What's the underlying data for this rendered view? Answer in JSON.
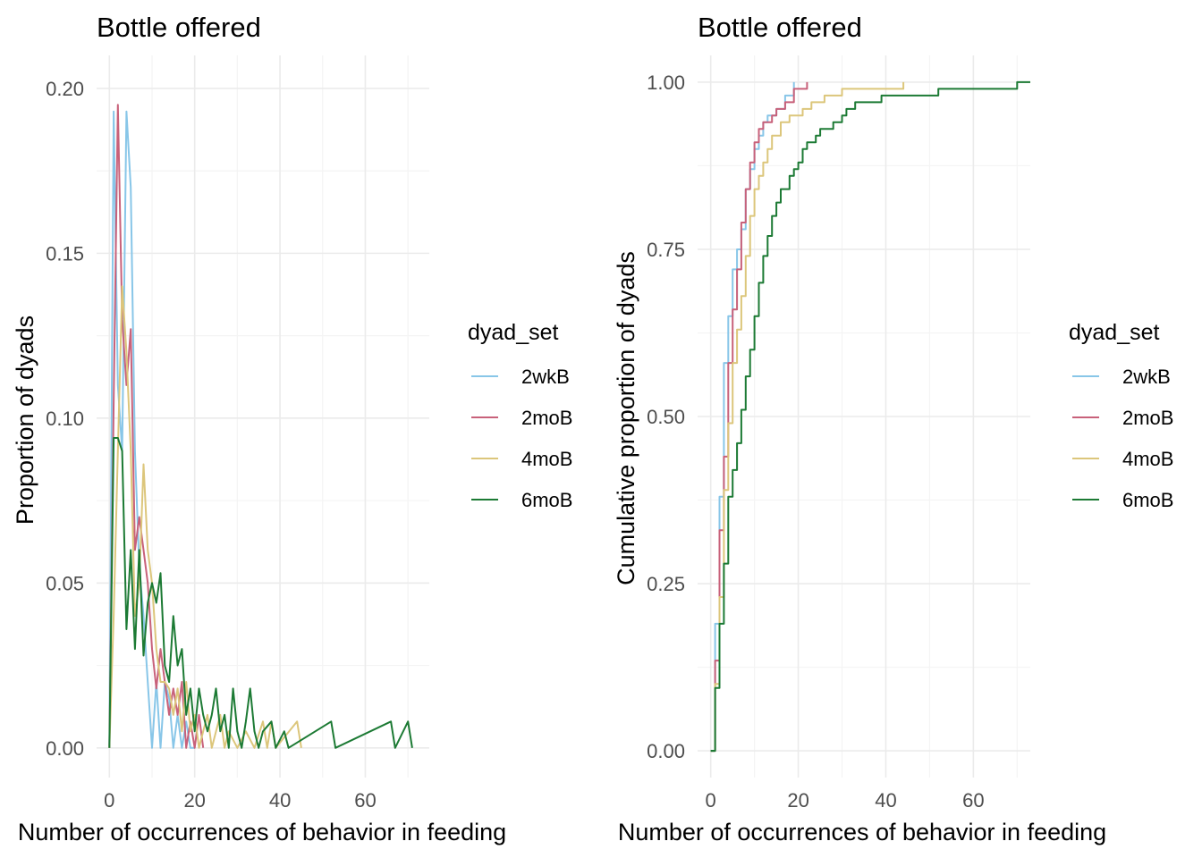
{
  "colors": {
    "2wkB": "#88c6e8",
    "2moB": "#c8617a",
    "4moB": "#dcc67b",
    "6moB": "#1c7a34",
    "grid_major": "#ebebeb",
    "grid_minor": "#f4f4f4",
    "axis_text": "#4d4d4d",
    "title_text": "#000000"
  },
  "chart_data": [
    {
      "type": "line",
      "title": "Bottle offered",
      "xlabel": "Number of occurrences of behavior in feeding",
      "ylabel": "Proportion of dyads",
      "xlim": [
        -3,
        75
      ],
      "ylim": [
        -0.009,
        0.21
      ],
      "x_ticks": [
        0,
        20,
        40,
        60
      ],
      "y_ticks": [
        0.0,
        0.05,
        0.1,
        0.15,
        0.2
      ],
      "x_tick_labels": [
        "0",
        "20",
        "40",
        "60"
      ],
      "y_tick_labels": [
        "0.00",
        "0.05",
        "0.10",
        "0.15",
        "0.20"
      ],
      "grid": true,
      "legend_title": "dyad_set",
      "legend_position": "right",
      "series": [
        {
          "name": "2wkB",
          "points": [
            [
              0,
              0
            ],
            [
              1,
              0.193
            ],
            [
              2,
              0.11
            ],
            [
              3,
              0.09
            ],
            [
              4,
              0.193
            ],
            [
              5,
              0.17
            ],
            [
              6,
              0.09
            ],
            [
              7,
              0.055
            ],
            [
              8,
              0.04
            ],
            [
              9,
              0.02
            ],
            [
              10,
              0
            ],
            [
              11,
              0.02
            ],
            [
              12,
              0
            ],
            [
              13,
              0.02
            ],
            [
              14,
              0.015
            ],
            [
              15,
              0
            ],
            [
              16,
              0.01
            ],
            [
              17,
              0
            ],
            [
              18,
              0.008
            ],
            [
              19,
              0
            ],
            [
              20,
              0
            ]
          ]
        },
        {
          "name": "2moB",
          "points": [
            [
              0,
              0
            ],
            [
              1,
              0.105
            ],
            [
              2,
              0.195
            ],
            [
              3,
              0.13
            ],
            [
              4,
              0.11
            ],
            [
              5,
              0.127
            ],
            [
              6,
              0.06
            ],
            [
              7,
              0.07
            ],
            [
              8,
              0.06
            ],
            [
              9,
              0.05
            ],
            [
              10,
              0.03
            ],
            [
              11,
              0.018
            ],
            [
              12,
              0.03
            ],
            [
              13,
              0.02
            ],
            [
              14,
              0.01
            ],
            [
              15,
              0.018
            ],
            [
              16,
              0.01
            ],
            [
              17,
              0.02
            ],
            [
              18,
              0
            ],
            [
              19,
              0.008
            ],
            [
              20,
              0
            ],
            [
              21,
              0.01
            ],
            [
              22,
              0
            ]
          ]
        },
        {
          "name": "4moB",
          "points": [
            [
              0,
              0
            ],
            [
              1,
              0.04
            ],
            [
              2,
              0.09
            ],
            [
              3,
              0.14
            ],
            [
              4,
              0.12
            ],
            [
              5,
              0.09
            ],
            [
              6,
              0.04
            ],
            [
              7,
              0.05
            ],
            [
              8,
              0.086
            ],
            [
              9,
              0.06
            ],
            [
              10,
              0.05
            ],
            [
              11,
              0.03
            ],
            [
              12,
              0.02
            ],
            [
              13,
              0.02
            ],
            [
              14,
              0.018
            ],
            [
              15,
              0.01
            ],
            [
              16,
              0.018
            ],
            [
              17,
              0.005
            ],
            [
              18,
              0.02
            ],
            [
              19,
              0.005
            ],
            [
              20,
              0.01
            ],
            [
              21,
              0
            ],
            [
              22,
              0.005
            ],
            [
              23,
              0.01
            ],
            [
              24,
              0
            ],
            [
              26,
              0.01
            ],
            [
              27,
              0
            ],
            [
              28,
              0.005
            ],
            [
              30,
              0
            ],
            [
              32,
              0.005
            ],
            [
              34,
              0
            ],
            [
              36,
              0.008
            ],
            [
              37,
              0
            ],
            [
              38,
              0.008
            ],
            [
              39,
              0
            ],
            [
              44,
              0.008
            ],
            [
              45,
              0
            ]
          ]
        },
        {
          "name": "6moB",
          "points": [
            [
              0,
              0
            ],
            [
              1,
              0.094
            ],
            [
              2,
              0.094
            ],
            [
              3,
              0.09
            ],
            [
              4,
              0.036
            ],
            [
              5,
              0.06
            ],
            [
              6,
              0.03
            ],
            [
              7,
              0.06
            ],
            [
              8,
              0.028
            ],
            [
              9,
              0.044
            ],
            [
              10,
              0.05
            ],
            [
              11,
              0.044
            ],
            [
              12,
              0.053
            ],
            [
              13,
              0.025
            ],
            [
              14,
              0.02
            ],
            [
              15,
              0.04
            ],
            [
              16,
              0.025
            ],
            [
              17,
              0.03
            ],
            [
              18,
              0.01
            ],
            [
              19,
              0.018
            ],
            [
              20,
              0.005
            ],
            [
              21,
              0.018
            ],
            [
              22,
              0.01
            ],
            [
              23,
              0.005
            ],
            [
              24,
              0.01
            ],
            [
              25,
              0.018
            ],
            [
              26,
              0.005
            ],
            [
              27,
              0.01
            ],
            [
              28,
              0
            ],
            [
              29,
              0.018
            ],
            [
              30,
              0.005
            ],
            [
              31,
              0
            ],
            [
              32,
              0.008
            ],
            [
              33,
              0.018
            ],
            [
              34,
              0.005
            ],
            [
              35,
              0
            ],
            [
              36,
              0.005
            ],
            [
              38,
              0.008
            ],
            [
              39,
              0
            ],
            [
              41,
              0.005
            ],
            [
              42,
              0
            ],
            [
              52,
              0.008
            ],
            [
              53,
              0
            ],
            [
              66,
              0.008
            ],
            [
              67,
              0
            ],
            [
              70,
              0.008
            ],
            [
              71,
              0
            ]
          ]
        }
      ]
    },
    {
      "type": "line",
      "title": "Bottle offered",
      "xlabel": "Number of occurrences of behavior in feeding",
      "ylabel": "Cumulative proportion of dyads",
      "xlim": [
        -3,
        73
      ],
      "ylim": [
        -0.04,
        1.04
      ],
      "x_ticks": [
        0,
        20,
        40,
        60
      ],
      "y_ticks": [
        0.0,
        0.25,
        0.5,
        0.75,
        1.0
      ],
      "x_tick_labels": [
        "0",
        "20",
        "40",
        "60"
      ],
      "y_tick_labels": [
        "0.00",
        "0.25",
        "0.50",
        "0.75",
        "1.00"
      ],
      "grid": true,
      "legend_title": "dyad_set",
      "legend_position": "right",
      "step": true,
      "series": [
        {
          "name": "2wkB",
          "points": [
            [
              0,
              0
            ],
            [
              1,
              0.19
            ],
            [
              2,
              0.38
            ],
            [
              3,
              0.58
            ],
            [
              4,
              0.65
            ],
            [
              5,
              0.72
            ],
            [
              6,
              0.75
            ],
            [
              7,
              0.78
            ],
            [
              8,
              0.84
            ],
            [
              9,
              0.87
            ],
            [
              10,
              0.9
            ],
            [
              11,
              0.92
            ],
            [
              12,
              0.94
            ],
            [
              13,
              0.95
            ],
            [
              15,
              0.96
            ],
            [
              17,
              0.98
            ],
            [
              19,
              1.0
            ]
          ]
        },
        {
          "name": "2moB",
          "points": [
            [
              0,
              0
            ],
            [
              1,
              0.135
            ],
            [
              2,
              0.33
            ],
            [
              3,
              0.44
            ],
            [
              4,
              0.58
            ],
            [
              5,
              0.66
            ],
            [
              6,
              0.72
            ],
            [
              7,
              0.79
            ],
            [
              8,
              0.84
            ],
            [
              9,
              0.88
            ],
            [
              10,
              0.91
            ],
            [
              11,
              0.93
            ],
            [
              12,
              0.94
            ],
            [
              14,
              0.95
            ],
            [
              15,
              0.96
            ],
            [
              17,
              0.97
            ],
            [
              19,
              0.99
            ],
            [
              22,
              1.0
            ]
          ]
        },
        {
          "name": "4moB",
          "points": [
            [
              0,
              0
            ],
            [
              1,
              0.1
            ],
            [
              2,
              0.23
            ],
            [
              3,
              0.39
            ],
            [
              4,
              0.49
            ],
            [
              5,
              0.58
            ],
            [
              6,
              0.63
            ],
            [
              7,
              0.68
            ],
            [
              8,
              0.74
            ],
            [
              9,
              0.8
            ],
            [
              10,
              0.84
            ],
            [
              11,
              0.86
            ],
            [
              12,
              0.88
            ],
            [
              13,
              0.9
            ],
            [
              14,
              0.92
            ],
            [
              16,
              0.94
            ],
            [
              18,
              0.95
            ],
            [
              21,
              0.96
            ],
            [
              23,
              0.97
            ],
            [
              26,
              0.98
            ],
            [
              30,
              0.99
            ],
            [
              44,
              1.0
            ]
          ]
        },
        {
          "name": "6moB",
          "points": [
            [
              0,
              0
            ],
            [
              1,
              0.094
            ],
            [
              2,
              0.19
            ],
            [
              3,
              0.28
            ],
            [
              4,
              0.38
            ],
            [
              5,
              0.42
            ],
            [
              6,
              0.46
            ],
            [
              7,
              0.51
            ],
            [
              8,
              0.56
            ],
            [
              9,
              0.6
            ],
            [
              10,
              0.65
            ],
            [
              11,
              0.7
            ],
            [
              12,
              0.74
            ],
            [
              13,
              0.77
            ],
            [
              14,
              0.8
            ],
            [
              15,
              0.82
            ],
            [
              16,
              0.84
            ],
            [
              18,
              0.86
            ],
            [
              19,
              0.87
            ],
            [
              20,
              0.88
            ],
            [
              21,
              0.9
            ],
            [
              22,
              0.91
            ],
            [
              24,
              0.92
            ],
            [
              25,
              0.93
            ],
            [
              28,
              0.94
            ],
            [
              30,
              0.95
            ],
            [
              31,
              0.96
            ],
            [
              33,
              0.97
            ],
            [
              39,
              0.98
            ],
            [
              41,
              0.98
            ],
            [
              52,
              0.99
            ],
            [
              66,
              0.99
            ],
            [
              70,
              1.0
            ],
            [
              73,
              1.0
            ]
          ]
        }
      ]
    }
  ]
}
